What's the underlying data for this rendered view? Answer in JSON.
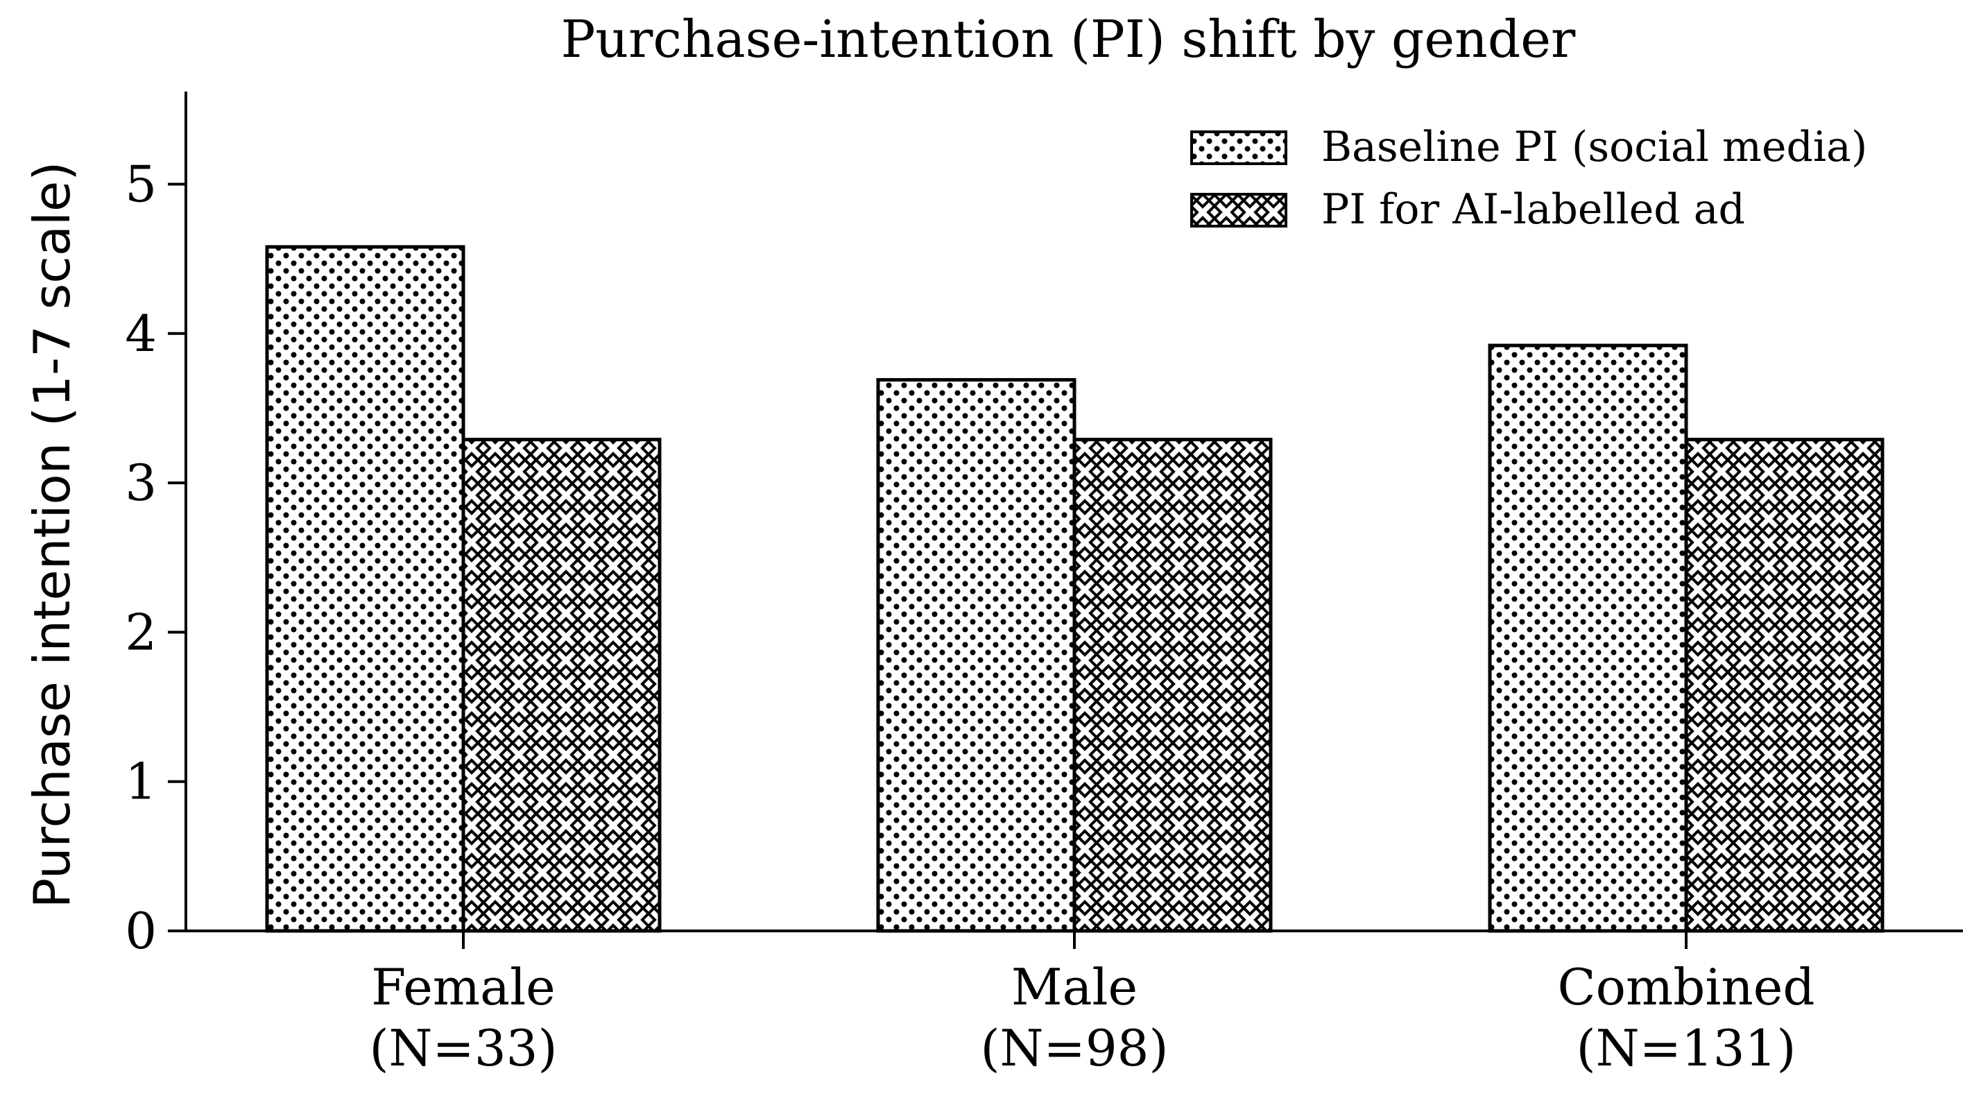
{
  "colors": {
    "bar_fill": "#ffffff",
    "bar_stroke": "#000000",
    "axis": "#000000",
    "text": "#000000"
  },
  "chart_data": {
    "type": "bar",
    "title": "Purchase-intention (PI) shift by gender",
    "xlabel": "",
    "ylabel": "Purchase intention (1-7 scale)",
    "ylim": [
      0,
      5.6
    ],
    "yticks": [
      0,
      1,
      2,
      3,
      4,
      5
    ],
    "categories": [
      [
        "Female",
        "(N=33)"
      ],
      [
        "Male",
        "(N=98)"
      ],
      [
        "Combined",
        "(N=131)"
      ]
    ],
    "series": [
      {
        "name": "Baseline PI (social media)",
        "hatch": "dots",
        "values": [
          4.58,
          3.69,
          3.92
        ]
      },
      {
        "name": "PI for AI-labelled ad",
        "hatch": "crosshatch",
        "values": [
          3.29,
          3.29,
          3.29
        ]
      }
    ],
    "legend_position": "top-right",
    "grid": false
  }
}
